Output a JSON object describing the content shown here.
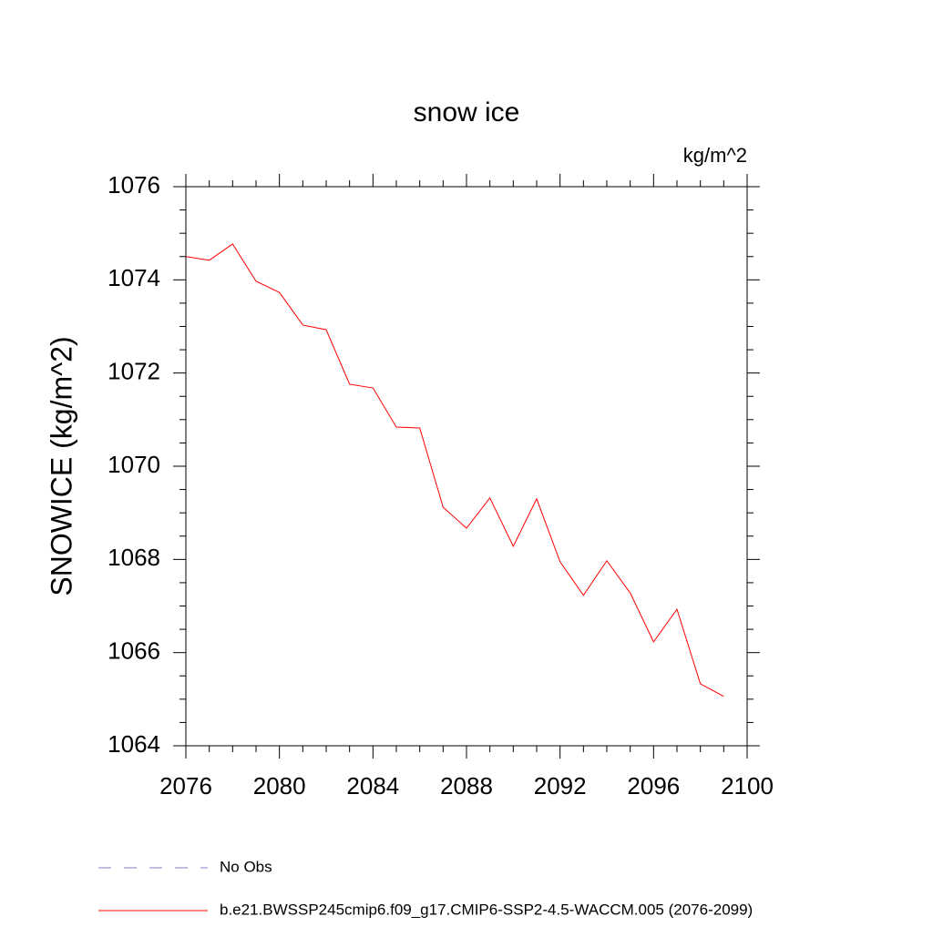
{
  "chart_data": {
    "type": "line",
    "title": "snow ice",
    "units_label": "kg/m^2",
    "y_label": "SNOWICE  (kg/m^2)",
    "x": [
      2076,
      2077,
      2078,
      2079,
      2080,
      2081,
      2082,
      2083,
      2084,
      2085,
      2086,
      2087,
      2088,
      2089,
      2090,
      2091,
      2092,
      2093,
      2094,
      2095,
      2096,
      2097,
      2098,
      2099
    ],
    "series": [
      {
        "name": "b.e21.BWSSP245cmip6.f09_g17.CMIP6-SSP2-4.5-WACCM.005 (2076-2099)",
        "color": "#ff0000",
        "values": [
          1074.5,
          1074.42,
          1074.77,
          1073.97,
          1073.73,
          1073.03,
          1072.93,
          1071.76,
          1071.68,
          1070.84,
          1070.82,
          1069.12,
          1068.67,
          1069.32,
          1068.28,
          1069.3,
          1067.95,
          1067.23,
          1067.97,
          1067.28,
          1066.23,
          1066.93,
          1065.33,
          1065.06
        ]
      }
    ],
    "extra_legend": [
      {
        "name": "No Obs",
        "color": "#7f7fbf",
        "style": "dashed"
      }
    ],
    "xlim": [
      2076,
      2100
    ],
    "xticks": [
      2076,
      2080,
      2084,
      2088,
      2092,
      2096,
      2100
    ],
    "ylim": [
      1064,
      1076
    ],
    "yticks": [
      1064,
      1066,
      1068,
      1070,
      1072,
      1074,
      1076
    ]
  }
}
